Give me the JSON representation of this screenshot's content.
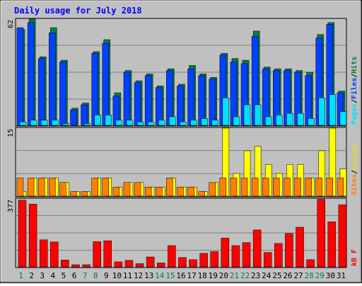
{
  "chart_data": {
    "type": "bar",
    "title": "Daily usage for July 2018",
    "categories": [
      "1",
      "2",
      "3",
      "4",
      "5",
      "6",
      "7",
      "8",
      "9",
      "10",
      "11",
      "12",
      "13",
      "14",
      "15",
      "16",
      "17",
      "18",
      "19",
      "20",
      "21",
      "22",
      "23",
      "24",
      "25",
      "26",
      "27",
      "28",
      "29",
      "30",
      "31"
    ],
    "weekend_days": [
      1,
      7,
      8,
      14,
      15,
      21,
      22,
      28,
      29
    ],
    "panels": [
      {
        "id": "pages_files_hits",
        "max_label": "62",
        "ylim": [
          0,
          62
        ],
        "legend": [
          "Pages",
          "Files",
          "Hits"
        ],
        "series": [
          {
            "name": "Hits",
            "color": "#008040",
            "values": [
              56,
              62,
              40,
              57,
              38,
              10,
              13,
              43,
              50,
              19,
              32,
              26,
              30,
              23,
              33,
              24,
              35,
              30,
              28,
              42,
              39,
              38,
              55,
              34,
              33,
              33,
              32,
              31,
              53,
              60,
              20
            ]
          },
          {
            "name": "Files",
            "color": "#0040ff",
            "values": [
              57,
              60,
              39,
              54,
              37,
              9,
              12,
              42,
              48,
              17,
              31,
              25,
              29,
              22,
              32,
              23,
              33,
              29,
              27,
              41,
              37,
              36,
              52,
              33,
              32,
              32,
              31,
              29,
              51,
              59,
              19
            ]
          },
          {
            "name": "Pages",
            "color": "#00e0ff",
            "values": [
              2,
              3,
              3,
              3,
              1,
              0,
              1,
              6,
              6,
              3,
              3,
              2,
              2,
              3,
              5,
              2,
              3,
              4,
              3,
              16,
              5,
              12,
              12,
              5,
              6,
              7,
              7,
              4,
              16,
              18,
              8
            ]
          }
        ]
      },
      {
        "id": "visits_sites",
        "max_label": "15",
        "ylim": [
          0,
          15
        ],
        "legend": [
          "Sites",
          "Visits"
        ],
        "series": [
          {
            "name": "Visits",
            "color": "#ffff00",
            "values": [
              1,
              4,
              4,
              4,
              3,
              1,
              1,
              4,
              4,
              2,
              3,
              3,
              2,
              2,
              4,
              2,
              2,
              1,
              3,
              15,
              5,
              10,
              11,
              7,
              5,
              7,
              7,
              4,
              10,
              15,
              6
            ]
          },
          {
            "name": "Sites",
            "color": "#ff8000",
            "values": [
              4,
              4,
              4,
              4,
              3,
              1,
              1,
              4,
              4,
              2,
              3,
              3,
              2,
              2,
              4,
              2,
              2,
              1,
              3,
              4,
              4,
              4,
              4,
              4,
              4,
              4,
              4,
              4,
              4,
              4,
              4
            ]
          }
        ]
      },
      {
        "id": "kbytes",
        "max_label": "377",
        "ylim": [
          0,
          377
        ],
        "legend": [
          "kB F"
        ],
        "series": [
          {
            "name": "kB F",
            "color": "#ff0000",
            "values": [
              370,
              348,
              150,
              138,
              38,
              12,
              12,
              140,
              145,
              28,
              36,
              18,
              55,
              22,
              118,
              52,
              40,
              75,
              85,
              160,
              118,
              135,
              205,
              80,
              130,
              185,
              220,
              40,
              375,
              250,
              345
            ]
          }
        ]
      }
    ]
  }
}
